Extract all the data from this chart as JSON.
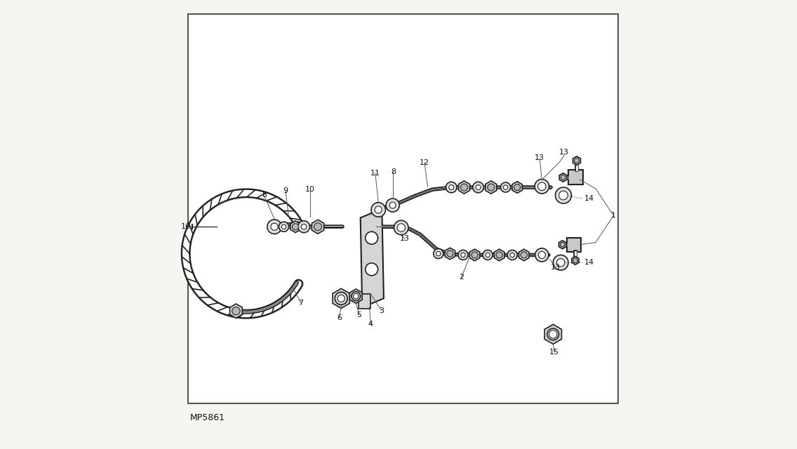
{
  "diagram_id": "MP5861",
  "background_color": "#f5f5f2",
  "fig_width": 11.36,
  "fig_height": 6.4,
  "dpi": 100,
  "border": [
    0.03,
    0.1,
    0.96,
    0.87
  ],
  "line_color": "#222222",
  "gray_fill": "#c8c8c8",
  "light_fill": "#e8e8e8"
}
